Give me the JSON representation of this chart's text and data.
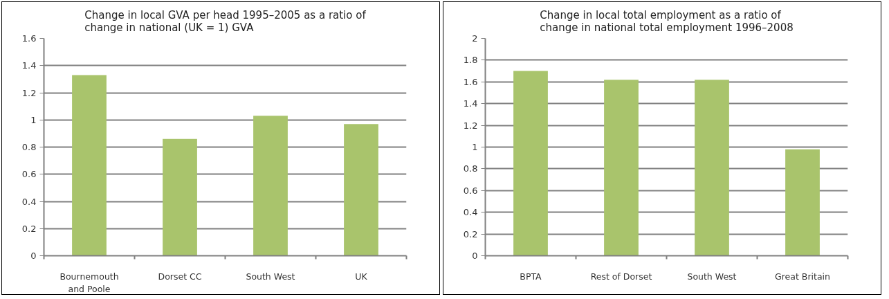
{
  "chart_data": [
    {
      "type": "bar",
      "title": "Change in local GVA per head 1995–2005 as a ratio of change in national (UK = 1) GVA",
      "categories": [
        "Bournemouth and Poole",
        "Dorset CC",
        "South West",
        "UK"
      ],
      "values": [
        1.33,
        0.86,
        1.03,
        0.97
      ],
      "color": "#a9c46c",
      "ylim": [
        0,
        1.6
      ],
      "yticks": [
        0,
        0.2,
        0.4,
        0.6,
        0.8,
        1,
        1.2,
        1.4,
        1.6
      ],
      "grid": "y"
    },
    {
      "type": "bar",
      "title": "Change in local total employment as a ratio of change in national total employment 1996–2008",
      "categories": [
        "BPTA",
        "Rest of Dorset",
        "South West",
        "Great Britain"
      ],
      "values": [
        1.7,
        1.62,
        1.62,
        0.98
      ],
      "color": "#a9c46c",
      "ylim": [
        0,
        2
      ],
      "yticks": [
        0,
        0.2,
        0.4,
        0.6,
        0.8,
        1,
        1.2,
        1.4,
        1.6,
        1.8,
        2
      ],
      "grid": "y"
    }
  ]
}
